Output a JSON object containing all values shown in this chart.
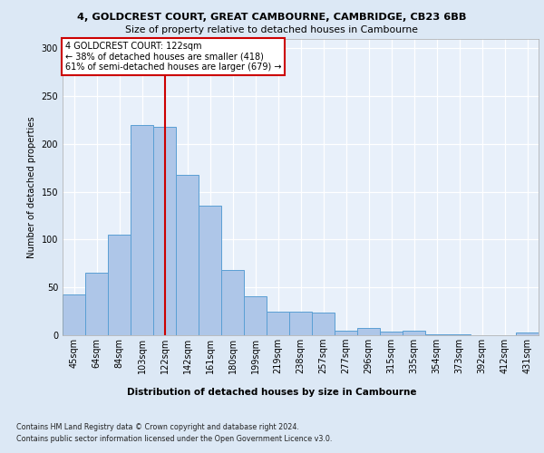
{
  "title1": "4, GOLDCREST COURT, GREAT CAMBOURNE, CAMBRIDGE, CB23 6BB",
  "title2": "Size of property relative to detached houses in Cambourne",
  "xlabel": "Distribution of detached houses by size in Cambourne",
  "ylabel": "Number of detached properties",
  "categories": [
    "45sqm",
    "64sqm",
    "84sqm",
    "103sqm",
    "122sqm",
    "142sqm",
    "161sqm",
    "180sqm",
    "199sqm",
    "219sqm",
    "238sqm",
    "257sqm",
    "277sqm",
    "296sqm",
    "315sqm",
    "335sqm",
    "354sqm",
    "373sqm",
    "392sqm",
    "412sqm",
    "431sqm"
  ],
  "values": [
    43,
    65,
    105,
    220,
    218,
    168,
    135,
    68,
    41,
    25,
    25,
    24,
    5,
    8,
    4,
    5,
    1,
    1,
    0,
    0,
    3
  ],
  "bar_color": "#aec6e8",
  "bar_edge_color": "#5a9fd4",
  "vline_x": 4,
  "vline_color": "#cc0000",
  "annotation_text": "4 GOLDCREST COURT: 122sqm\n← 38% of detached houses are smaller (418)\n61% of semi-detached houses are larger (679) →",
  "annotation_box_color": "#ffffff",
  "annotation_box_edge": "#cc0000",
  "ylim": [
    0,
    310
  ],
  "yticks": [
    0,
    50,
    100,
    150,
    200,
    250,
    300
  ],
  "footer1": "Contains HM Land Registry data © Crown copyright and database right 2024.",
  "footer2": "Contains public sector information licensed under the Open Government Licence v3.0.",
  "bg_color": "#dce8f5",
  "plot_bg_color": "#e8f0fa"
}
